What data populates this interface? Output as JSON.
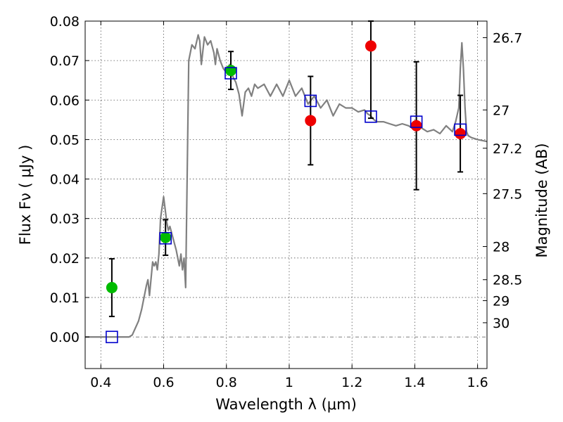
{
  "chart_data": {
    "type": "scatter",
    "title": "",
    "xlabel": "Wavelength  λ (μm)",
    "ylabel": "Flux  Fν  ( μJy )",
    "ylabel_right": "Magnitude (AB)",
    "xlim": [
      0.35,
      1.63
    ],
    "ylim": [
      -0.008,
      0.08
    ],
    "grid": true,
    "x_ticks": [
      {
        "value": 0.4,
        "label": "0.4"
      },
      {
        "value": 0.6,
        "label": "0.6"
      },
      {
        "value": 0.8,
        "label": "0.8"
      },
      {
        "value": 1.0,
        "label": "1"
      },
      {
        "value": 1.2,
        "label": "1.2"
      },
      {
        "value": 1.4,
        "label": "1.4"
      },
      {
        "value": 1.6,
        "label": "1.6"
      }
    ],
    "y_ticks": [
      {
        "value": 0.0,
        "label": "0.00"
      },
      {
        "value": 0.01,
        "label": "0.01"
      },
      {
        "value": 0.02,
        "label": "0.02"
      },
      {
        "value": 0.03,
        "label": "0.03"
      },
      {
        "value": 0.04,
        "label": "0.04"
      },
      {
        "value": 0.05,
        "label": "0.05"
      },
      {
        "value": 0.06,
        "label": "0.06"
      },
      {
        "value": 0.07,
        "label": "0.07"
      },
      {
        "value": 0.08,
        "label": "0.08"
      }
    ],
    "mag_ticks": [
      {
        "label": "26.7",
        "flux": 0.0758
      },
      {
        "label": "27",
        "flux": 0.0575
      },
      {
        "label": "27.2",
        "flux": 0.0478
      },
      {
        "label": "27.5",
        "flux": 0.0363
      },
      {
        "label": "28",
        "flux": 0.0229
      },
      {
        "label": "28.5",
        "flux": 0.0145
      },
      {
        "label": "29",
        "flux": 0.0092
      },
      {
        "label": "30",
        "flux": 0.0036
      }
    ],
    "colors": {
      "model": "#808080",
      "green": "#00bb00",
      "red": "#ee0000",
      "square": "#0000cc",
      "errorbar": "#000000",
      "grid": "#555555"
    },
    "model_sed": {
      "x": [
        0.35,
        0.49,
        0.5,
        0.52,
        0.53,
        0.545,
        0.55,
        0.555,
        0.565,
        0.57,
        0.575,
        0.58,
        0.585,
        0.59,
        0.6,
        0.61,
        0.615,
        0.62,
        0.63,
        0.64,
        0.65,
        0.655,
        0.66,
        0.665,
        0.67,
        0.68,
        0.69,
        0.7,
        0.71,
        0.715,
        0.72,
        0.73,
        0.74,
        0.75,
        0.76,
        0.765,
        0.77,
        0.78,
        0.79,
        0.8,
        0.81,
        0.82,
        0.83,
        0.84,
        0.85,
        0.86,
        0.87,
        0.88,
        0.89,
        0.9,
        0.92,
        0.94,
        0.96,
        0.98,
        1.0,
        1.02,
        1.04,
        1.06,
        1.08,
        1.1,
        1.12,
        1.14,
        1.16,
        1.18,
        1.2,
        1.22,
        1.24,
        1.25,
        1.26,
        1.27,
        1.28,
        1.3,
        1.32,
        1.34,
        1.36,
        1.38,
        1.4,
        1.42,
        1.44,
        1.46,
        1.48,
        1.5,
        1.52,
        1.53,
        1.54,
        1.545,
        1.55,
        1.555,
        1.56,
        1.565,
        1.57,
        1.58,
        1.6,
        1.63
      ],
      "y": [
        0.0,
        0.0,
        0.0005,
        0.004,
        0.007,
        0.013,
        0.0145,
        0.0105,
        0.019,
        0.018,
        0.019,
        0.017,
        0.021,
        0.03,
        0.0355,
        0.029,
        0.027,
        0.028,
        0.025,
        0.022,
        0.018,
        0.021,
        0.017,
        0.02,
        0.0125,
        0.07,
        0.074,
        0.073,
        0.0765,
        0.075,
        0.069,
        0.076,
        0.074,
        0.075,
        0.072,
        0.069,
        0.073,
        0.07,
        0.068,
        0.067,
        0.069,
        0.066,
        0.0645,
        0.0615,
        0.056,
        0.062,
        0.063,
        0.061,
        0.064,
        0.063,
        0.064,
        0.061,
        0.064,
        0.061,
        0.065,
        0.061,
        0.063,
        0.059,
        0.061,
        0.058,
        0.06,
        0.056,
        0.059,
        0.058,
        0.058,
        0.057,
        0.0575,
        0.0565,
        0.056,
        0.055,
        0.0545,
        0.0545,
        0.054,
        0.0535,
        0.054,
        0.0535,
        0.0525,
        0.053,
        0.052,
        0.0525,
        0.0515,
        0.0535,
        0.052,
        0.0545,
        0.058,
        0.068,
        0.0745,
        0.068,
        0.058,
        0.052,
        0.051,
        0.0505,
        0.05,
        0.0495
      ]
    },
    "series": [
      {
        "marker": "circle",
        "color": "green",
        "points": [
          {
            "x": 0.435,
            "y": 0.0125,
            "yerr": 0.0073
          },
          {
            "x": 0.606,
            "y": 0.0252,
            "yerr": 0.0045
          },
          {
            "x": 0.814,
            "y": 0.0675,
            "yerr": 0.0048
          }
        ]
      },
      {
        "marker": "circle",
        "color": "red",
        "points": [
          {
            "x": 1.068,
            "y": 0.0548,
            "yerr_low": 0.0112,
            "yerr_high": 0.0112
          },
          {
            "x": 1.26,
            "y": 0.0737,
            "yerr_low": 0.0183,
            "yerr_high": 0.0063
          },
          {
            "x": 1.405,
            "y": 0.0535,
            "yerr": 0.0162
          },
          {
            "x": 1.545,
            "y": 0.0515,
            "yerr": 0.0097
          }
        ]
      },
      {
        "marker": "square",
        "color": "square",
        "points": [
          {
            "x": 0.435,
            "y": 0.0
          },
          {
            "x": 0.606,
            "y": 0.025
          },
          {
            "x": 0.814,
            "y": 0.0668
          },
          {
            "x": 1.068,
            "y": 0.0598
          },
          {
            "x": 1.26,
            "y": 0.0558
          },
          {
            "x": 1.405,
            "y": 0.0545
          },
          {
            "x": 1.545,
            "y": 0.0525
          }
        ]
      }
    ]
  }
}
